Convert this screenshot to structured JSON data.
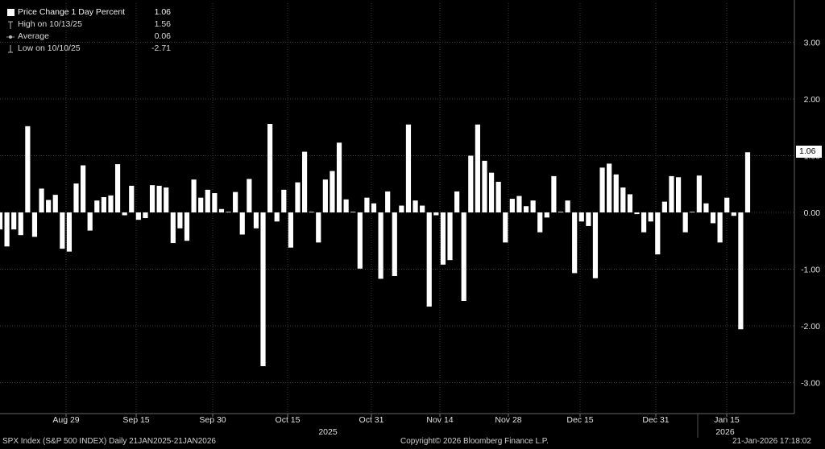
{
  "legend": {
    "title": "Price Change 1 Day Percent",
    "title_value": "1.06",
    "high_label": "High on 10/13/25",
    "high_value": "1.56",
    "avg_label": "Average",
    "avg_value": "0.06",
    "low_label": "Low on 10/10/25",
    "low_value": "-2.71"
  },
  "last_value_badge": "1.06",
  "footer": {
    "left": "SPX Index (S&P 500 INDEX) Daily 21JAN2025-21JAN2026",
    "center": "Copyright© 2026 Bloomberg Finance L.P.",
    "right": "21-Jan-2026 17:18:02"
  },
  "colors": {
    "background": "#000000",
    "bar": "#ffffff",
    "grid": "#3a3a3a"
  },
  "chart_data": {
    "type": "bar",
    "title": "Price Change 1 Day Percent",
    "ylim": [
      -3.3,
      3.3
    ],
    "y_ticks": [
      3.0,
      2.0,
      1.0,
      0.0,
      -1.0,
      -2.0,
      -3.0
    ],
    "y_tick_labels": [
      "3.00",
      "2.00",
      "1.00",
      "0.00",
      "-1.00",
      "-2.00",
      "-3.00"
    ],
    "x_tick_labels": [
      "Aug 29",
      "Sep 15",
      "Sep 30",
      "Oct 15",
      "Oct 31",
      "Nov 14",
      "Nov 28",
      "Dec 15",
      "Dec 31",
      "Jan 15"
    ],
    "year_labels": [
      "2025",
      "2026"
    ],
    "grid": true,
    "legend_position": "top-left",
    "series": [
      {
        "values": [
          -0.3,
          -0.6,
          -0.3,
          -0.4,
          1.52,
          -0.43,
          0.42,
          0.22,
          0.31,
          -0.64,
          -0.69,
          0.51,
          0.83,
          -0.32,
          0.21,
          0.27,
          0.3,
          0.85,
          -0.05,
          0.47,
          -0.13,
          -0.1,
          0.48,
          0.47,
          0.44,
          -0.54,
          -0.28,
          -0.5,
          0.58,
          0.26,
          0.4,
          0.34,
          0.06,
          0.0,
          0.36,
          -0.39,
          0.59,
          -0.28,
          -2.71,
          1.56,
          -0.16,
          0.4,
          -0.62,
          0.53,
          1.07,
          0.0,
          -0.53,
          0.58,
          0.73,
          1.23,
          0.23,
          0.0,
          -0.99,
          0.26,
          0.16,
          -1.17,
          0.37,
          -1.12,
          0.12,
          1.55,
          0.21,
          0.12,
          -1.66,
          -0.05,
          -0.92,
          -0.84,
          0.37,
          -1.56,
          1.0,
          1.55,
          0.91,
          0.7,
          0.54,
          -0.53,
          0.24,
          0.29,
          0.11,
          0.21,
          -0.35,
          -0.09,
          0.64,
          0.0,
          0.21,
          -1.07,
          -0.16,
          -0.24,
          -1.16,
          0.79,
          0.86,
          0.67,
          0.44,
          0.32,
          -0.03,
          -0.35,
          -0.16,
          -0.74,
          0.19,
          0.64,
          0.62,
          -0.35,
          0.0,
          0.65,
          0.16,
          -0.19,
          -0.53,
          0.26,
          -0.06,
          -2.06,
          1.06
        ]
      }
    ]
  }
}
